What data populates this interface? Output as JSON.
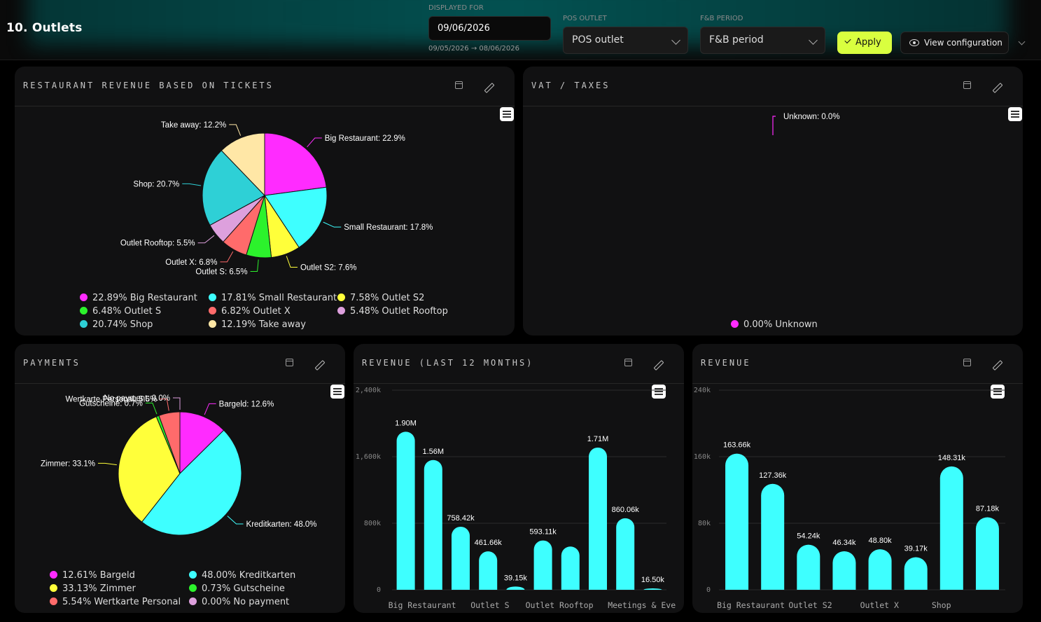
{
  "page_title": "10. Outlets",
  "filters": {
    "displayed_for_label": "DISPLAYED FOR",
    "date_value": "09/06/2026",
    "date_range": "09/05/2026 → 08/06/2026",
    "pos_outlet_label": "POS OUTLET",
    "pos_outlet_value": "POS outlet",
    "fb_period_label": "F&B PERIOD",
    "fb_period_value": "F&B period",
    "apply_label": "Apply",
    "view_config_label": "View configuration"
  },
  "colors": {
    "magenta": "#ff2bff",
    "cyan": "#3effff",
    "yellow": "#ffff3a",
    "green": "#2cf22c",
    "salmon": "#ff6b6b",
    "lavender": "#dda0dd",
    "teal": "#2ed0d6",
    "cream": "#ffe7a6"
  },
  "panels": {
    "restaurant": {
      "title": "RESTAURANT REVENUE BASED ON TICKETS",
      "legend": [
        {
          "text": "22.89% Big Restaurant",
          "color": "#ff2bff"
        },
        {
          "text": "17.81% Small Restaurant",
          "color": "#3effff"
        },
        {
          "text": "7.58% Outlet S2",
          "color": "#ffff3a"
        },
        {
          "text": "6.48% Outlet S",
          "color": "#2cf22c"
        },
        {
          "text": "6.82% Outlet X",
          "color": "#ff6b6b"
        },
        {
          "text": "5.48% Outlet Rooftop",
          "color": "#dda0dd"
        },
        {
          "text": "20.74% Shop",
          "color": "#2ed0d6"
        },
        {
          "text": "12.19% Take away",
          "color": "#ffe7a6"
        }
      ]
    },
    "vat": {
      "title": "VAT / TAXES",
      "legend": [
        {
          "text": "0.00% Unknown",
          "color": "#ff2bff"
        }
      ]
    },
    "payments": {
      "title": "PAYMENTS",
      "legend": [
        {
          "text": "12.61% Bargeld",
          "color": "#ff2bff"
        },
        {
          "text": "48.00% Kreditkarten",
          "color": "#3effff"
        },
        {
          "text": "33.13% Zimmer",
          "color": "#ffff3a"
        },
        {
          "text": "0.73% Gutscheine",
          "color": "#2cf22c"
        },
        {
          "text": "5.54% Wertkarte Personal",
          "color": "#ff6b6b"
        },
        {
          "text": "0.00% No payment",
          "color": "#dda0dd"
        }
      ]
    },
    "revenue12": {
      "title": "REVENUE (LAST 12 MONTHS)"
    },
    "revenue": {
      "title": "REVENUE"
    }
  },
  "chart_data": [
    {
      "type": "pie",
      "title": "RESTAURANT REVENUE BASED ON TICKETS",
      "slices": [
        {
          "label": "Big Restaurant: 22.9%",
          "value": 22.89,
          "color": "#ff2bff"
        },
        {
          "label": "Small Restaurant: 17.8%",
          "value": 17.81,
          "color": "#3effff"
        },
        {
          "label": "Outlet S2: 7.6%",
          "value": 7.58,
          "color": "#ffff3a"
        },
        {
          "label": "Outlet S: 6.5%",
          "value": 6.48,
          "color": "#2cf22c"
        },
        {
          "label": "Outlet X: 6.8%",
          "value": 6.82,
          "color": "#ff6b6b"
        },
        {
          "label": "Outlet Rooftop: 5.5%",
          "value": 5.48,
          "color": "#dda0dd"
        },
        {
          "label": "Shop: 20.7%",
          "value": 20.74,
          "color": "#2ed0d6"
        },
        {
          "label": "Take away: 12.2%",
          "value": 12.19,
          "color": "#ffe7a6"
        }
      ]
    },
    {
      "type": "pie",
      "title": "VAT / TAXES",
      "slices": [
        {
          "label": "Unknown: 0.0%",
          "value": 0,
          "color": "#ff2bff"
        }
      ]
    },
    {
      "type": "pie",
      "title": "PAYMENTS",
      "slices": [
        {
          "label": "Bargeld: 12.6%",
          "value": 12.61,
          "color": "#ff2bff"
        },
        {
          "label": "Kreditkarten: 48.0%",
          "value": 48.0,
          "color": "#3effff"
        },
        {
          "label": "Zimmer: 33.1%",
          "value": 33.13,
          "color": "#ffff3a"
        },
        {
          "label": "Gutscheine: 0.7%",
          "value": 0.73,
          "color": "#2cf22c"
        },
        {
          "label": "Wertkarte Personal: 5.5%",
          "value": 5.54,
          "color": "#ff6b6b"
        },
        {
          "label": "No payment: 0.0%",
          "value": 0,
          "color": "#dda0dd"
        }
      ]
    },
    {
      "type": "bar",
      "title": "REVENUE (LAST 12 MONTHS)",
      "ylim": [
        0,
        2400000
      ],
      "yticks": [
        {
          "v": 0,
          "label": "0"
        },
        {
          "v": 800000,
          "label": "800k"
        },
        {
          "v": 1600000,
          "label": "1,600k"
        },
        {
          "v": 2400000,
          "label": "2,400k"
        }
      ],
      "values": [
        1900000,
        1560000,
        758420,
        461660,
        39150,
        593110,
        520000,
        1710000,
        860060,
        16500
      ],
      "data_labels": [
        "1.90M",
        "1.56M",
        "758.42k",
        "461.66k",
        "39.15k",
        "593.11k",
        "",
        "1.71M",
        "860.06k",
        "16.50k"
      ],
      "tick_labels": [
        {
          "at": 0,
          "text": "Big Restaurant"
        },
        {
          "at": 3,
          "text": "Outlet S"
        },
        {
          "at": 5,
          "text": "Outlet Rooftop"
        },
        {
          "at": 8,
          "text": "Meetings & Eve"
        }
      ],
      "color": "#3effff"
    },
    {
      "type": "bar",
      "title": "REVENUE",
      "ylim": [
        0,
        240000
      ],
      "yticks": [
        {
          "v": 0,
          "label": "0"
        },
        {
          "v": 80000,
          "label": "80k"
        },
        {
          "v": 160000,
          "label": "160k"
        },
        {
          "v": 240000,
          "label": "240k"
        }
      ],
      "values": [
        163660,
        127360,
        54240,
        46340,
        48800,
        39170,
        148310,
        87180
      ],
      "data_labels": [
        "163.66k",
        "127.36k",
        "54.24k",
        "46.34k",
        "48.80k",
        "39.17k",
        "148.31k",
        "87.18k"
      ],
      "tick_labels": [
        {
          "at": 0,
          "text": "Big Restaurant"
        },
        {
          "at": 2,
          "text": "Outlet S2"
        },
        {
          "at": 4,
          "text": "Outlet X"
        },
        {
          "at": 6,
          "text": "Shop"
        }
      ],
      "color": "#3effff"
    }
  ]
}
